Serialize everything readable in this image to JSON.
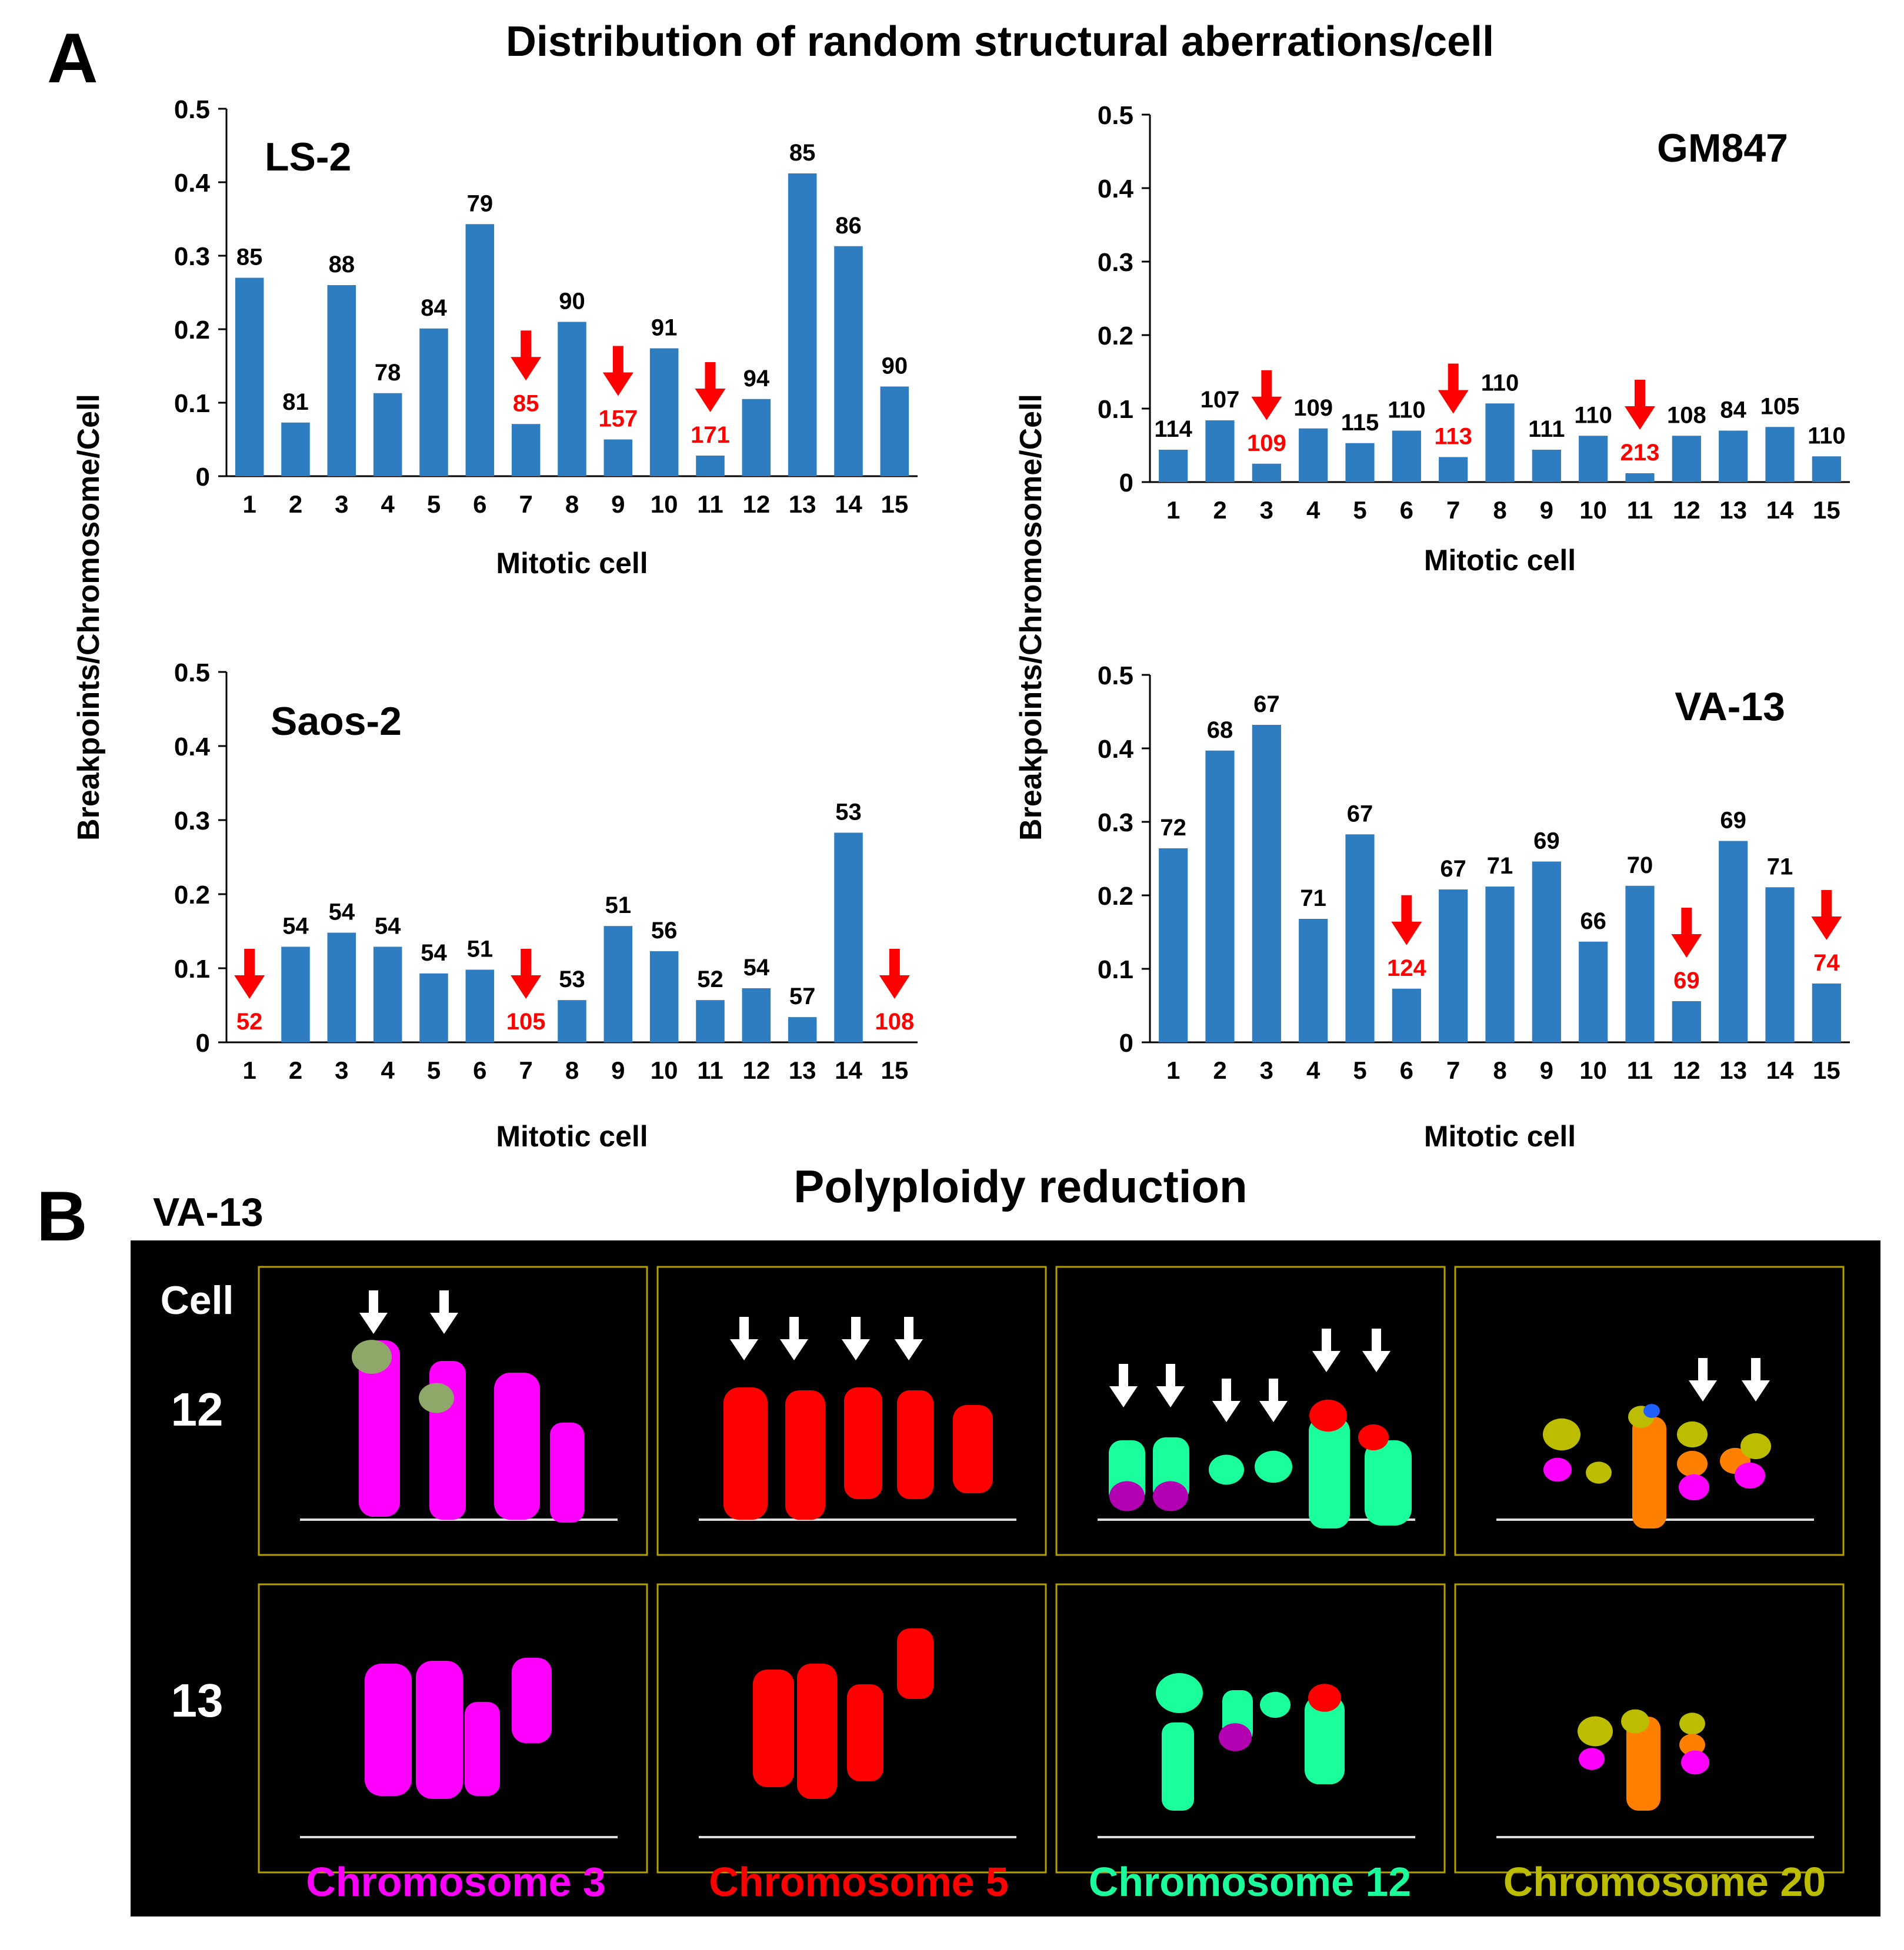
{
  "figure": {
    "panel_a_letter": "A",
    "panel_a_title": "Distribution of random structural aberrations/cell",
    "y_axis_title": "Breakpoints/Chromosome/Cell",
    "panel_b_letter": "B",
    "panel_b_title": "Polyploidy reduction",
    "panel_b_cell_line": "VA-13",
    "panel_b_cell_header": "Cell",
    "panel_b_rows": [
      "12",
      "13"
    ],
    "panel_b_chromosomes": [
      "Chromosome 3",
      "Chromosome 5",
      "Chromosome 12",
      "Chromosome 20"
    ]
  },
  "colors": {
    "bar": "#2e7dc1",
    "red_label": "#ff0000",
    "arrow": "#ff0000",
    "chr3": "#ff00ff",
    "chr5": "#ff0000",
    "chr12": "#1aff9c",
    "chr20": "#bdbd00",
    "frame": "#b3a000",
    "green_tip": "#8ea86a",
    "purple": "#b300b3",
    "orange": "#ff8000",
    "blue": "#2060ff"
  },
  "chart_data": [
    {
      "type": "bar",
      "title": "LS-2",
      "xlabel": "Mitotic cell",
      "ylabel": "Breakpoints/Chromosome/Cell",
      "categories": [
        "1",
        "2",
        "3",
        "4",
        "5",
        "6",
        "7",
        "8",
        "9",
        "10",
        "11",
        "12",
        "13",
        "14",
        "15"
      ],
      "values": [
        0.27,
        0.073,
        0.26,
        0.113,
        0.201,
        0.343,
        0.071,
        0.21,
        0.05,
        0.174,
        0.028,
        0.105,
        0.412,
        0.313,
        0.122
      ],
      "bar_labels": [
        "85",
        "81",
        "88",
        "78",
        "84",
        "79",
        "85",
        "90",
        "157",
        "91",
        "171",
        "94",
        "85",
        "86",
        "90"
      ],
      "red_cells": [
        7,
        9,
        11
      ],
      "ylim": [
        0,
        0.5
      ],
      "yticks": [
        "0",
        "0.1",
        "0.2",
        "0.3",
        "0.4",
        "0.5"
      ]
    },
    {
      "type": "bar",
      "title": "GM847",
      "xlabel": "Mitotic cell",
      "ylabel": "Breakpoints/Chromosome/Cell",
      "categories": [
        "1",
        "2",
        "3",
        "4",
        "5",
        "6",
        "7",
        "8",
        "9",
        "10",
        "11",
        "12",
        "13",
        "14",
        "15"
      ],
      "values": [
        0.044,
        0.084,
        0.025,
        0.073,
        0.053,
        0.07,
        0.034,
        0.107,
        0.044,
        0.063,
        0.012,
        0.063,
        0.07,
        0.075,
        0.035
      ],
      "bar_labels": [
        "114",
        "107",
        "109",
        "109",
        "115",
        "110",
        "113",
        "110",
        "111",
        "110",
        "213",
        "108",
        "84",
        "105",
        "110"
      ],
      "red_cells": [
        3,
        7,
        11
      ],
      "ylim": [
        0,
        0.5
      ],
      "yticks": [
        "0",
        "0.1",
        "0.2",
        "0.3",
        "0.4",
        "0.5"
      ]
    },
    {
      "type": "bar",
      "title": "Saos-2",
      "xlabel": "Mitotic cell",
      "ylabel": "Breakpoints/Chromosome/Cell",
      "categories": [
        "1",
        "2",
        "3",
        "4",
        "5",
        "6",
        "7",
        "8",
        "9",
        "10",
        "11",
        "12",
        "13",
        "14",
        "15"
      ],
      "values": [
        0,
        0.129,
        0.148,
        0.129,
        0.093,
        0.098,
        0,
        0.057,
        0.157,
        0.123,
        0.057,
        0.073,
        0.034,
        0.283,
        0
      ],
      "bar_labels": [
        "52",
        "54",
        "54",
        "54",
        "54",
        "51",
        "105",
        "53",
        "51",
        "56",
        "52",
        "54",
        "57",
        "53",
        "108"
      ],
      "red_cells": [
        1,
        7,
        15
      ],
      "ylim": [
        0,
        0.5
      ],
      "yticks": [
        "0",
        "0.1",
        "0.2",
        "0.3",
        "0.4",
        "0.5"
      ]
    },
    {
      "type": "bar",
      "title": "VA-13",
      "xlabel": "Mitotic cell",
      "ylabel": "Breakpoints/Chromosome/Cell",
      "categories": [
        "1",
        "2",
        "3",
        "4",
        "5",
        "6",
        "7",
        "8",
        "9",
        "10",
        "11",
        "12",
        "13",
        "14",
        "15"
      ],
      "values": [
        0.264,
        0.397,
        0.432,
        0.168,
        0.283,
        0.073,
        0.208,
        0.212,
        0.246,
        0.137,
        0.213,
        0.056,
        0.274,
        0.211,
        0.08
      ],
      "bar_labels": [
        "72",
        "68",
        "67",
        "71",
        "67",
        "124",
        "67",
        "71",
        "69",
        "66",
        "70",
        "69",
        "69",
        "71",
        "74"
      ],
      "red_cells": [
        6,
        12,
        15
      ],
      "ylim": [
        0,
        0.5
      ],
      "yticks": [
        "0",
        "0.1",
        "0.2",
        "0.3",
        "0.4",
        "0.5"
      ]
    }
  ]
}
